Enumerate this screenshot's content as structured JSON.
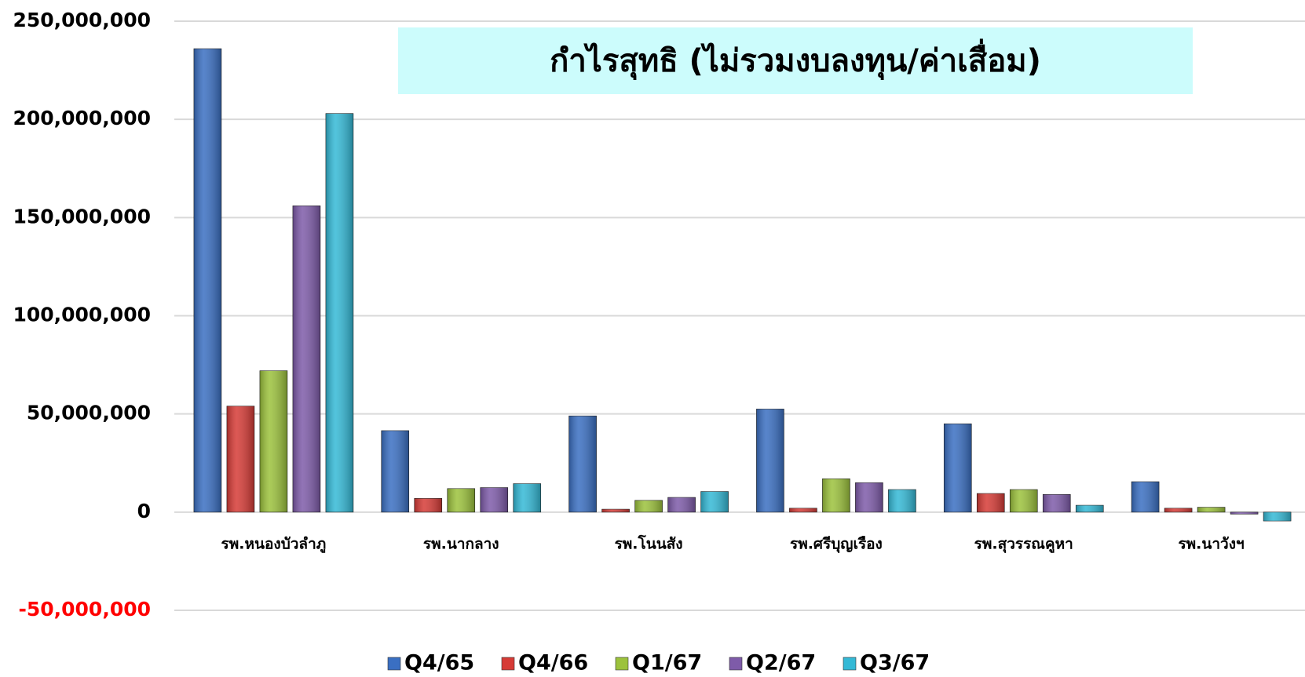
{
  "chart_data": {
    "type": "bar",
    "title": "กำไรสุทธิ (ไม่รวมงบลงทุน/ค่าเสื่อม)",
    "categories": [
      "รพ.หนองบัวลำภู",
      "รพ.นากลาง",
      "รพ.โนนสัง",
      "รพ.ศรีบุญเรือง",
      "รพ.สุวรรณคูหา",
      "รพ.นาวังฯ"
    ],
    "series": [
      {
        "name": "Q4/65",
        "color": "#3a6fc2",
        "values": [
          236000000,
          41500000,
          49000000,
          52500000,
          45000000,
          15500000
        ]
      },
      {
        "name": "Q4/66",
        "color": "#d63b36",
        "values": [
          54000000,
          7000000,
          1500000,
          2000000,
          9500000,
          2000000
        ]
      },
      {
        "name": "Q1/67",
        "color": "#9cc23c",
        "values": [
          72000000,
          12000000,
          6000000,
          17000000,
          11500000,
          2500000
        ]
      },
      {
        "name": "Q2/67",
        "color": "#7e5ba9",
        "values": [
          156000000,
          12500000,
          7500000,
          15000000,
          9000000,
          -1000000
        ]
      },
      {
        "name": "Q3/67",
        "color": "#34b9d6",
        "values": [
          203000000,
          14500000,
          10500000,
          11500000,
          3500000,
          -4500000
        ]
      }
    ],
    "ylim": [
      -50000000,
      250000000
    ],
    "yticks": [
      {
        "value": -50000000,
        "label": "-50,000,000"
      },
      0,
      {
        "value": 50000000,
        "label": "50,000,000"
      },
      {
        "value": 100000000,
        "label": "100,000,000"
      },
      {
        "value": 150000000,
        "label": "150,000,000"
      },
      {
        "value": 200000000,
        "label": "200,000,000"
      },
      {
        "value": 250000000,
        "label": "250,000,000"
      }
    ],
    "grid": true,
    "negative_tick_color": "#ff0000",
    "legend": "bottom"
  }
}
